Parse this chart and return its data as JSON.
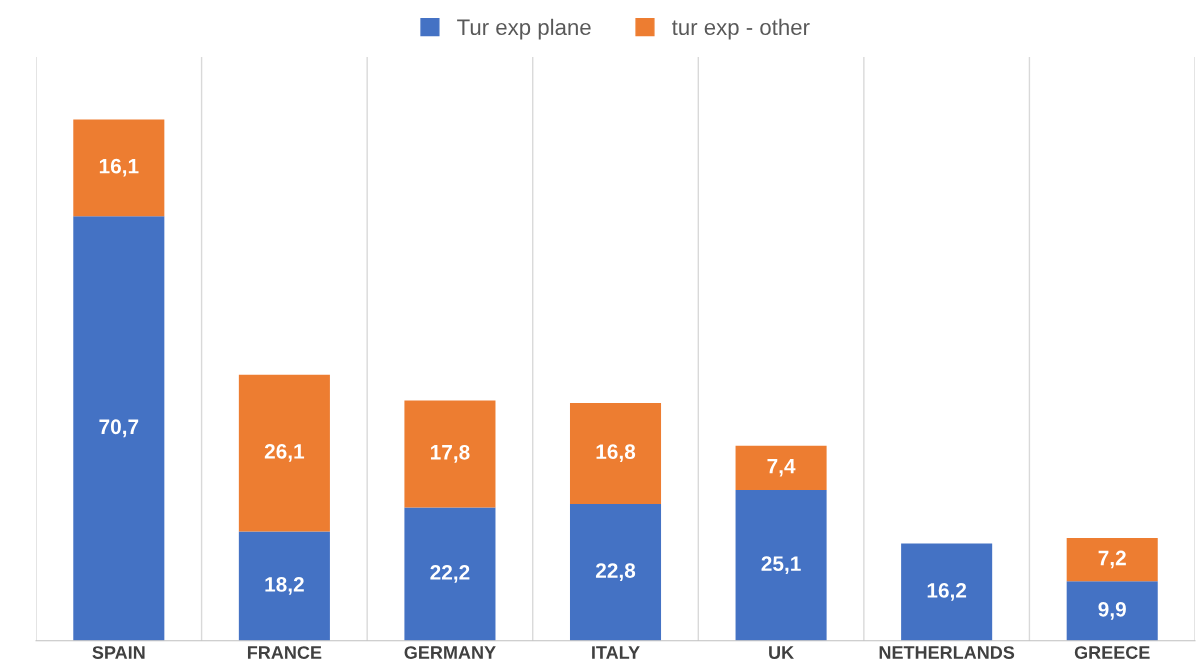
{
  "chart_data": {
    "type": "bar",
    "stacked": true,
    "grid": "x",
    "legend": "top",
    "categories": [
      "SPAIN",
      "FRANCE",
      "GERMANY",
      "ITALY",
      "UK",
      "NETHERLANDS",
      "GREECE"
    ],
    "series": [
      {
        "name": "Tur exp plane",
        "color": "#4472c4",
        "values": [
          70.7,
          18.2,
          22.2,
          22.8,
          25.1,
          16.2,
          9.9
        ],
        "value_labels": [
          "70,7",
          "18,2",
          "22,2",
          "22,8",
          "25,1",
          "16,2",
          "9,9"
        ]
      },
      {
        "name": "tur exp - other",
        "color": "#ed7d31",
        "values": [
          16.1,
          26.1,
          17.8,
          16.8,
          7.4,
          null,
          7.2
        ],
        "value_labels": [
          "16,1",
          "26,1",
          "17,8",
          "16,8",
          "7,4",
          null,
          "7,2"
        ]
      }
    ]
  }
}
